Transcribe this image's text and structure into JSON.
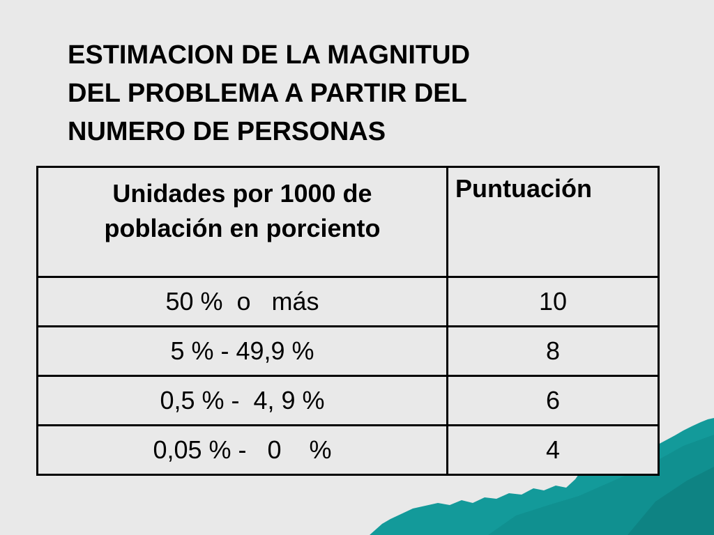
{
  "slide": {
    "title": "ESTIMACION DE LA MAGNITUD\nDEL PROBLEMA  A PARTIR DEL\nNUMERO DE PERSONAS"
  },
  "table": {
    "headers": [
      "Unidades por 1000 de\npoblación  en porciento",
      "Puntuación"
    ],
    "rows": [
      {
        "range": "50 %  o   más",
        "score": "10"
      },
      {
        "range": "5 % - 49,9 %",
        "score": "8"
      },
      {
        "range": "0,5 % -  4, 9 %",
        "score": "6"
      },
      {
        "range": "0,05 % -   0    %",
        "score": "4"
      }
    ]
  },
  "colors": {
    "background": "#e9e9e9",
    "accent": "#139a9a"
  }
}
